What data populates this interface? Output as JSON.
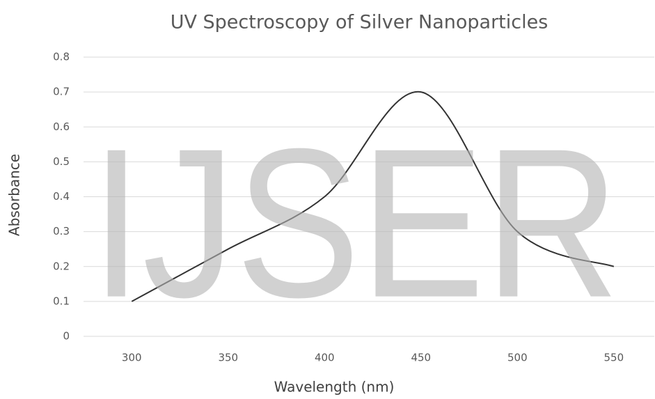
{
  "chart_data": {
    "type": "line",
    "title": "UV Spectroscopy of Silver Nanoparticles",
    "xlabel": "Wavelength (nm)",
    "ylabel": "Absorbance",
    "watermark": "IJSER",
    "x": [
      300,
      350,
      400,
      450,
      500,
      550
    ],
    "series": [
      {
        "color": "#333333",
        "values": [
          0.1,
          0.25,
          0.4,
          0.7,
          0.3,
          0.2
        ]
      }
    ],
    "xlim": [
      275,
      571
    ],
    "xticks": [
      300,
      350,
      400,
      450,
      500,
      550
    ],
    "ylim": [
      0,
      0.8
    ],
    "yticks": [
      0,
      0.1,
      0.2,
      0.3,
      0.4,
      0.5,
      0.6,
      0.7,
      0.8
    ],
    "grid": true,
    "smooth": true
  }
}
